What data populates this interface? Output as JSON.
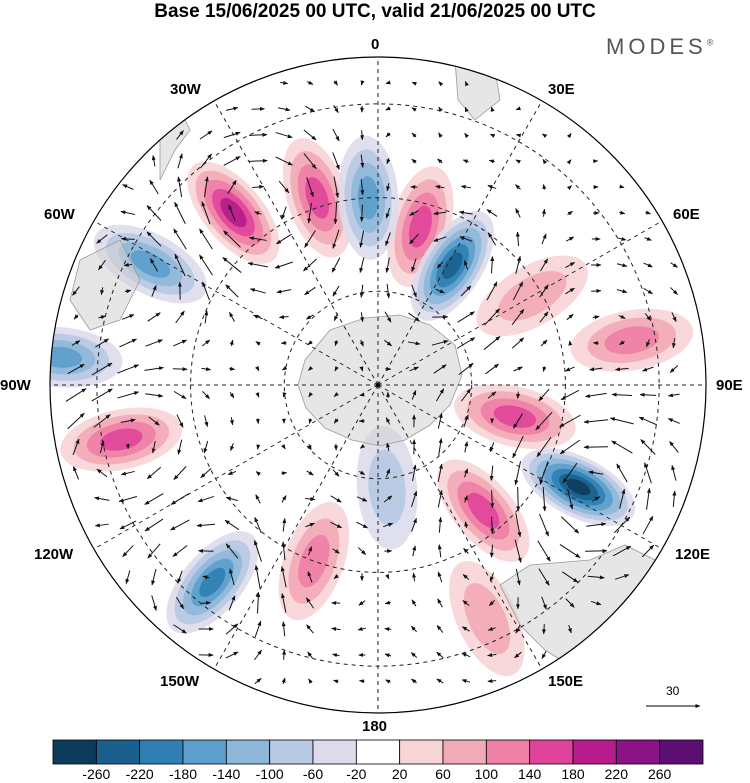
{
  "title": "Base 15/06/2025 00 UTC, valid 21/06/2025 00 UTC",
  "brand": "MODES",
  "brand_mark": "®",
  "longitude_labels": {
    "n0": "0",
    "n30e": "30E",
    "n60e": "60E",
    "n90e": "90E",
    "n120e": "120E",
    "n150e": "150E",
    "n180": "180",
    "n150w": "150W",
    "n120w": "120W",
    "n90w": "90W",
    "n60w": "60W",
    "n30w": "30W"
  },
  "reference_vector": {
    "label": "30"
  },
  "colorbar": {
    "labels": [
      "-260",
      "-220",
      "-180",
      "-140",
      "-100",
      "-60",
      "-20",
      "20",
      "60",
      "100",
      "140",
      "180",
      "220",
      "260"
    ],
    "colors": [
      "#0d3b5c",
      "#1b5f8e",
      "#2f7fb5",
      "#5b9fcc",
      "#8eb7d9",
      "#b8c9e3",
      "#dcdcec",
      "#ffffff",
      "#f7d4d6",
      "#f2aab6",
      "#ee80a6",
      "#e0449a",
      "#b71b8c",
      "#8a1485",
      "#5c0e73"
    ]
  },
  "anomalies": [
    {
      "lon": 15,
      "colat": 35,
      "v": 120
    },
    {
      "lon": -18,
      "colat": 42,
      "v": 140
    },
    {
      "lon": -40,
      "colat": 48,
      "v": 160
    },
    {
      "lon": 32,
      "colat": 30,
      "v": -200
    },
    {
      "lon": -3,
      "colat": 40,
      "v": -140
    },
    {
      "lon": 60,
      "colat": 38,
      "v": 60
    },
    {
      "lon": -62,
      "colat": 55,
      "v": -140
    },
    {
      "lon": -85,
      "colat": 68,
      "v": -120
    },
    {
      "lon": -102,
      "colat": 56,
      "v": 150
    },
    {
      "lon": -140,
      "colat": 55,
      "v": -160
    },
    {
      "lon": -160,
      "colat": 40,
      "v": 100
    },
    {
      "lon": 117,
      "colat": 48,
      "v": -260
    },
    {
      "lon": 103,
      "colat": 30,
      "v": 120
    },
    {
      "lon": 140,
      "colat": 35,
      "v": 140
    },
    {
      "lon": 80,
      "colat": 55,
      "v": 80
    },
    {
      "lon": 155,
      "colat": 55,
      "v": 60
    },
    {
      "lon": 175,
      "colat": 22,
      "v": -60
    }
  ]
}
